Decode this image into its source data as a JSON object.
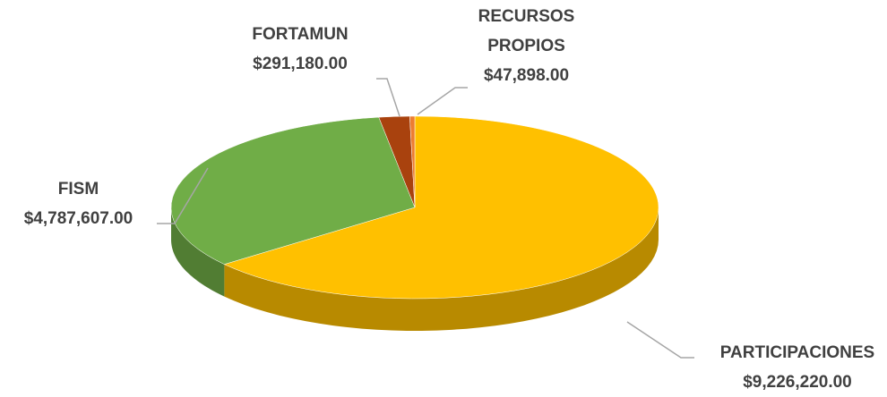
{
  "chart_data": {
    "type": "pie",
    "style": "3d",
    "categories": [
      "PARTICIPACIONES",
      "FISM",
      "FORTAMUN",
      "RECURSOS PROPIOS"
    ],
    "values": [
      9226220,
      4787607,
      291180,
      47898
    ],
    "value_labels": [
      "$9,226,220.00",
      "$4,787,607.00",
      "$291,180.00",
      "$47,898.00"
    ],
    "colors": [
      "#ffc000",
      "#70ad47",
      "#a9420e",
      "#ed7d31"
    ]
  }
}
